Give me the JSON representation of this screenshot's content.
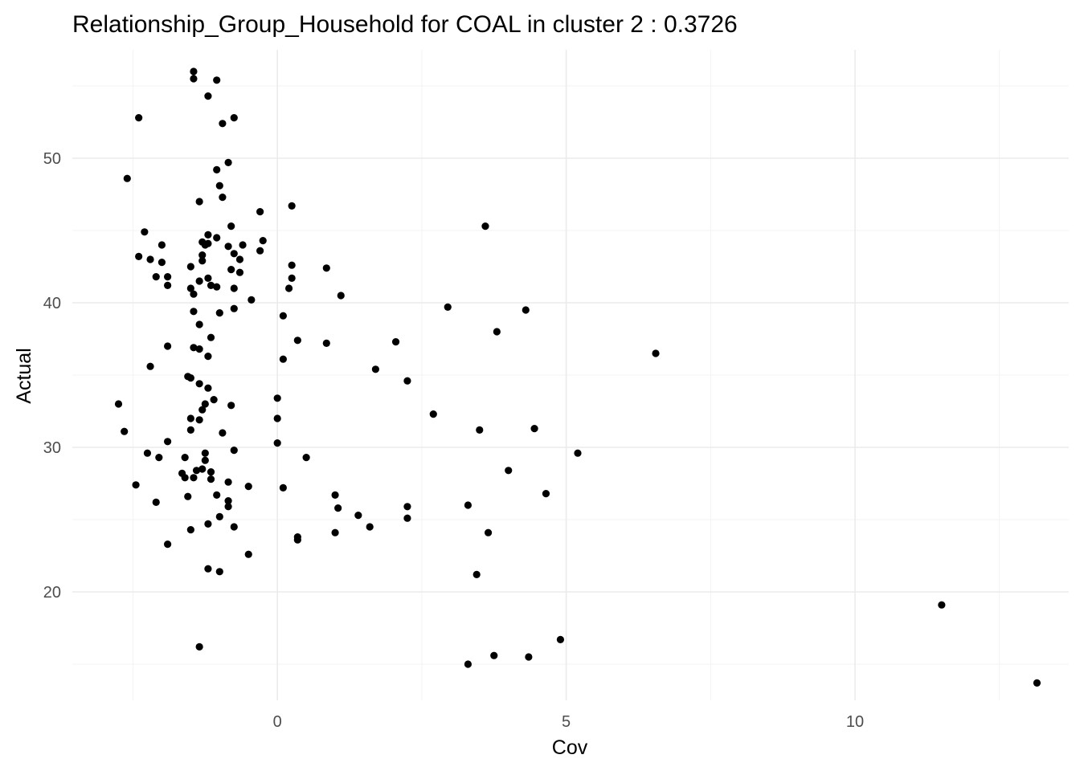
{
  "chart_data": {
    "type": "scatter",
    "title": "Relationship_Group_Household for COAL in cluster 2 : 0.3726",
    "xlabel": "Cov",
    "ylabel": "Actual",
    "xlim": [
      -3.55,
      13.7
    ],
    "ylim": [
      12.5,
      57.5
    ],
    "x_major_ticks": [
      0,
      5,
      10
    ],
    "x_tick_labels": [
      "0",
      "5",
      "10"
    ],
    "x_minor_ticks": [
      -2.5,
      2.5,
      7.5,
      12.5
    ],
    "y_major_ticks": [
      20,
      30,
      40,
      50
    ],
    "y_tick_labels": [
      "20",
      "30",
      "40",
      "50"
    ],
    "y_minor_ticks": [
      15,
      25,
      35,
      45,
      55
    ],
    "grid": true,
    "legend": "none",
    "point_color": "#000000",
    "points": [
      [
        -1.45,
        56.0
      ],
      [
        -1.45,
        55.5
      ],
      [
        -1.05,
        55.4
      ],
      [
        -1.2,
        54.3
      ],
      [
        -2.4,
        52.8
      ],
      [
        -0.75,
        52.8
      ],
      [
        -0.95,
        52.4
      ],
      [
        -0.85,
        49.7
      ],
      [
        -1.05,
        49.2
      ],
      [
        -2.6,
        48.6
      ],
      [
        -1.0,
        48.1
      ],
      [
        -0.95,
        47.3
      ],
      [
        -1.35,
        47.0
      ],
      [
        0.25,
        46.7
      ],
      [
        -0.3,
        46.3
      ],
      [
        -0.8,
        45.3
      ],
      [
        3.6,
        45.3
      ],
      [
        -2.3,
        44.9
      ],
      [
        -1.2,
        44.7
      ],
      [
        -1.05,
        44.5
      ],
      [
        -0.25,
        44.3
      ],
      [
        -1.3,
        44.2
      ],
      [
        -1.2,
        44.1
      ],
      [
        -1.25,
        44.0
      ],
      [
        -0.6,
        44.0
      ],
      [
        -2.0,
        44.0
      ],
      [
        -0.85,
        43.9
      ],
      [
        -0.3,
        43.6
      ],
      [
        -0.75,
        43.4
      ],
      [
        -1.3,
        43.3
      ],
      [
        -2.4,
        43.2
      ],
      [
        -0.65,
        43.0
      ],
      [
        -2.2,
        43.0
      ],
      [
        -1.3,
        42.9
      ],
      [
        -2.0,
        42.8
      ],
      [
        0.25,
        42.6
      ],
      [
        -1.5,
        42.5
      ],
      [
        0.85,
        42.4
      ],
      [
        -0.8,
        42.3
      ],
      [
        -0.65,
        42.1
      ],
      [
        -2.1,
        41.8
      ],
      [
        -1.9,
        41.8
      ],
      [
        0.25,
        41.7
      ],
      [
        -1.2,
        41.7
      ],
      [
        -1.35,
        41.5
      ],
      [
        -1.9,
        41.2
      ],
      [
        -1.15,
        41.2
      ],
      [
        -1.05,
        41.1
      ],
      [
        0.2,
        41.0
      ],
      [
        -1.5,
        41.0
      ],
      [
        -0.75,
        41.0
      ],
      [
        -1.45,
        40.6
      ],
      [
        1.1,
        40.5
      ],
      [
        -0.45,
        40.2
      ],
      [
        2.95,
        39.7
      ],
      [
        -0.75,
        39.6
      ],
      [
        4.3,
        39.5
      ],
      [
        -1.45,
        39.4
      ],
      [
        -1.0,
        39.3
      ],
      [
        0.1,
        39.1
      ],
      [
        -1.35,
        38.5
      ],
      [
        3.8,
        38.0
      ],
      [
        -1.15,
        37.6
      ],
      [
        0.35,
        37.4
      ],
      [
        2.05,
        37.3
      ],
      [
        0.85,
        37.2
      ],
      [
        -1.9,
        37.0
      ],
      [
        -1.45,
        36.9
      ],
      [
        -1.35,
        36.8
      ],
      [
        6.55,
        36.5
      ],
      [
        -1.2,
        36.3
      ],
      [
        0.1,
        36.1
      ],
      [
        -2.2,
        35.6
      ],
      [
        1.7,
        35.4
      ],
      [
        -1.55,
        34.9
      ],
      [
        -1.5,
        34.8
      ],
      [
        2.25,
        34.6
      ],
      [
        -1.35,
        34.4
      ],
      [
        -1.2,
        34.1
      ],
      [
        0.0,
        33.4
      ],
      [
        -1.1,
        33.3
      ],
      [
        -2.75,
        33.0
      ],
      [
        -1.25,
        33.0
      ],
      [
        -0.8,
        32.9
      ],
      [
        -1.3,
        32.6
      ],
      [
        2.7,
        32.3
      ],
      [
        0.0,
        32.0
      ],
      [
        -1.5,
        32.0
      ],
      [
        -1.35,
        31.9
      ],
      [
        3.5,
        31.2
      ],
      [
        4.45,
        31.3
      ],
      [
        -2.65,
        31.1
      ],
      [
        -0.95,
        31.0
      ],
      [
        -1.5,
        31.2
      ],
      [
        -1.9,
        30.4
      ],
      [
        0.0,
        30.3
      ],
      [
        -0.75,
        29.8
      ],
      [
        5.2,
        29.6
      ],
      [
        -2.25,
        29.6
      ],
      [
        -1.25,
        29.6
      ],
      [
        -2.05,
        29.3
      ],
      [
        -1.6,
        29.3
      ],
      [
        0.5,
        29.3
      ],
      [
        -1.25,
        29.1
      ],
      [
        -1.3,
        28.5
      ],
      [
        -1.4,
        28.4
      ],
      [
        -1.15,
        28.3
      ],
      [
        4.0,
        28.4
      ],
      [
        -1.65,
        28.2
      ],
      [
        -1.6,
        27.9
      ],
      [
        -1.45,
        27.9
      ],
      [
        -1.15,
        27.8
      ],
      [
        -0.85,
        27.6
      ],
      [
        -2.45,
        27.4
      ],
      [
        -0.5,
        27.3
      ],
      [
        0.1,
        27.2
      ],
      [
        4.65,
        26.8
      ],
      [
        1.0,
        26.7
      ],
      [
        -1.05,
        26.7
      ],
      [
        -1.55,
        26.6
      ],
      [
        -0.85,
        26.3
      ],
      [
        -2.1,
        26.2
      ],
      [
        3.3,
        26.0
      ],
      [
        1.05,
        25.8
      ],
      [
        2.25,
        25.9
      ],
      [
        -0.85,
        25.9
      ],
      [
        1.4,
        25.3
      ],
      [
        -1.0,
        25.2
      ],
      [
        2.25,
        25.1
      ],
      [
        -1.2,
        24.7
      ],
      [
        -0.75,
        24.5
      ],
      [
        1.6,
        24.5
      ],
      [
        -1.5,
        24.3
      ],
      [
        1.0,
        24.1
      ],
      [
        3.65,
        24.1
      ],
      [
        0.35,
        23.8
      ],
      [
        0.35,
        23.6
      ],
      [
        -1.9,
        23.3
      ],
      [
        -0.5,
        22.6
      ],
      [
        -1.2,
        21.6
      ],
      [
        -1.0,
        21.4
      ],
      [
        3.45,
        21.2
      ],
      [
        11.5,
        19.1
      ],
      [
        4.9,
        16.7
      ],
      [
        -1.35,
        16.2
      ],
      [
        3.75,
        15.6
      ],
      [
        4.35,
        15.5
      ],
      [
        3.3,
        15.0
      ],
      [
        13.15,
        13.7
      ]
    ]
  }
}
